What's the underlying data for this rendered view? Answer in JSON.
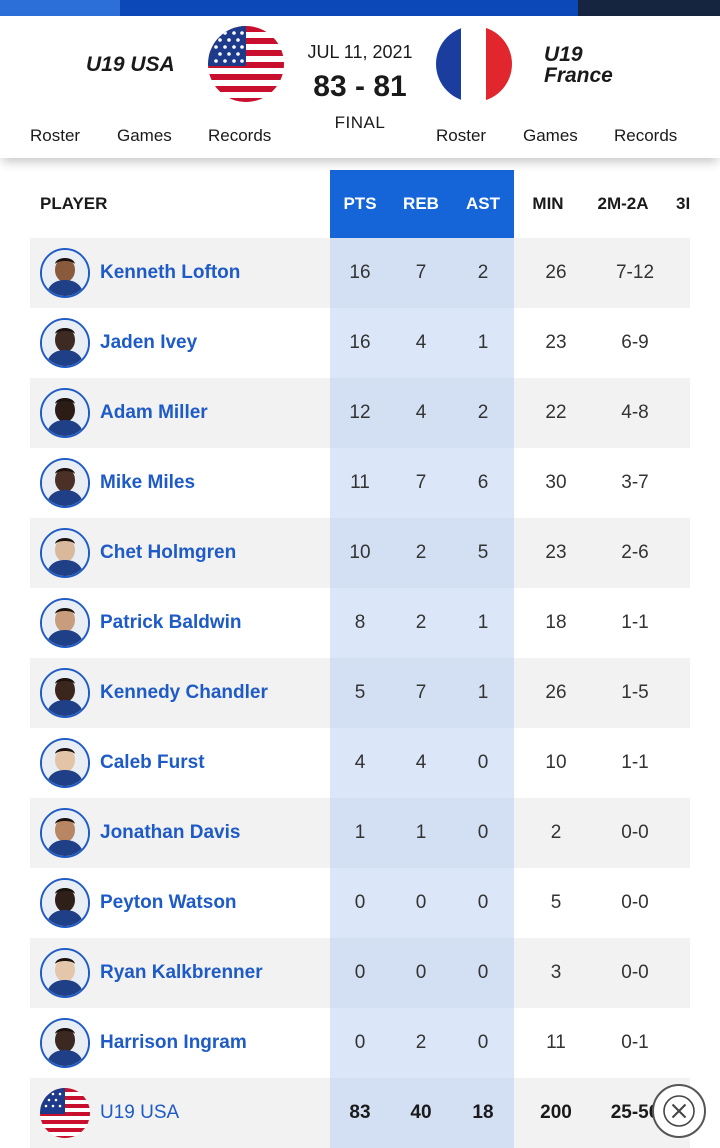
{
  "colors": {
    "accent": "#1565d8",
    "link": "#1e5bc6",
    "highlight_column": "#dbe7f8",
    "topbar_left": "#2d6fd8",
    "topbar_mid": "#0d48b8",
    "topbar_right": "#16253f"
  },
  "header": {
    "home_team": "U19 USA",
    "away_team": "U19 France",
    "home_flag_icon": "usa-flag-icon",
    "away_flag_icon": "france-flag-icon",
    "date": "JUL 11, 2021",
    "score": "83 - 81",
    "status": "FINAL",
    "home_links": [
      "Roster",
      "Games",
      "Records"
    ],
    "away_links": [
      "Roster",
      "Games",
      "Records"
    ]
  },
  "table": {
    "headers": {
      "player": "PLAYER",
      "pts": "PTS",
      "reb": "REB",
      "ast": "AST",
      "min": "MIN",
      "m2": "2M-2A",
      "m3": "3I"
    },
    "rows": [
      {
        "name": "Kenneth Lofton",
        "pts": "16",
        "reb": "7",
        "ast": "2",
        "min": "26",
        "m2": "7-12"
      },
      {
        "name": "Jaden Ivey",
        "pts": "16",
        "reb": "4",
        "ast": "1",
        "min": "23",
        "m2": "6-9"
      },
      {
        "name": "Adam Miller",
        "pts": "12",
        "reb": "4",
        "ast": "2",
        "min": "22",
        "m2": "4-8"
      },
      {
        "name": "Mike Miles",
        "pts": "11",
        "reb": "7",
        "ast": "6",
        "min": "30",
        "m2": "3-7"
      },
      {
        "name": "Chet Holmgren",
        "pts": "10",
        "reb": "2",
        "ast": "5",
        "min": "23",
        "m2": "2-6"
      },
      {
        "name": "Patrick Baldwin",
        "pts": "8",
        "reb": "2",
        "ast": "1",
        "min": "18",
        "m2": "1-1"
      },
      {
        "name": "Kennedy Chandler",
        "pts": "5",
        "reb": "7",
        "ast": "1",
        "min": "26",
        "m2": "1-5"
      },
      {
        "name": "Caleb Furst",
        "pts": "4",
        "reb": "4",
        "ast": "0",
        "min": "10",
        "m2": "1-1"
      },
      {
        "name": "Jonathan Davis",
        "pts": "1",
        "reb": "1",
        "ast": "0",
        "min": "2",
        "m2": "0-0"
      },
      {
        "name": "Peyton Watson",
        "pts": "0",
        "reb": "0",
        "ast": "0",
        "min": "5",
        "m2": "0-0"
      },
      {
        "name": "Ryan Kalkbrenner",
        "pts": "0",
        "reb": "0",
        "ast": "0",
        "min": "3",
        "m2": "0-0"
      },
      {
        "name": "Harrison Ingram",
        "pts": "0",
        "reb": "2",
        "ast": "0",
        "min": "11",
        "m2": "0-1"
      }
    ],
    "totals": {
      "name": "U19 USA",
      "pts": "83",
      "reb": "40",
      "ast": "18",
      "min": "200",
      "m2": "25-50"
    }
  },
  "close_icon": "close-icon"
}
